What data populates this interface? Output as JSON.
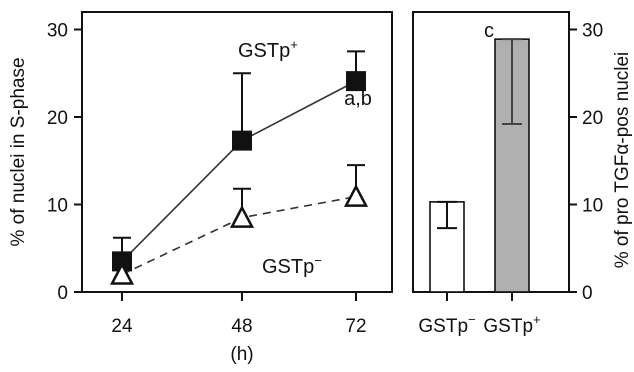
{
  "chart_data": [
    {
      "type": "line",
      "x": [
        24,
        48,
        72
      ],
      "xticks": [
        "24",
        "48",
        "72"
      ],
      "xlabel": "(h)",
      "ylabel": "% of nuclei in S-phase",
      "ylim": [
        0,
        32
      ],
      "yticks": [
        "0",
        "10",
        "20",
        "30"
      ],
      "series": [
        {
          "name": "GSTp",
          "name_sup": "+",
          "marker": "filled-square",
          "line_style": "solid",
          "values": [
            3.5,
            17.3,
            24.1
          ],
          "error_upper": [
            6.2,
            25.0,
            27.5
          ],
          "annotations": [
            "",
            "",
            "a,b"
          ]
        },
        {
          "name": "GSTp",
          "name_sup": "−",
          "marker": "open-triangle",
          "line_style": "dashed",
          "values": [
            2.0,
            8.5,
            10.9
          ],
          "error_upper": [
            3.5,
            11.8,
            14.5
          ],
          "annotations": [
            "",
            "",
            ""
          ]
        }
      ]
    },
    {
      "type": "bar",
      "categories": [
        "GSTp",
        "GSTp"
      ],
      "category_sups": [
        "−",
        "+"
      ],
      "values": [
        10.3,
        28.9
      ],
      "error_lower": [
        7.3,
        19.2
      ],
      "error_upper": [
        10.3,
        28.9
      ],
      "bar_colors": [
        "#ffffff",
        "#b0b0b0"
      ],
      "annotations": [
        "",
        "c"
      ],
      "ylabel": "% of pro TGFα-pos nuclei",
      "ylim": [
        0,
        32
      ],
      "yticks": [
        "0",
        "10",
        "20",
        "30"
      ]
    }
  ]
}
